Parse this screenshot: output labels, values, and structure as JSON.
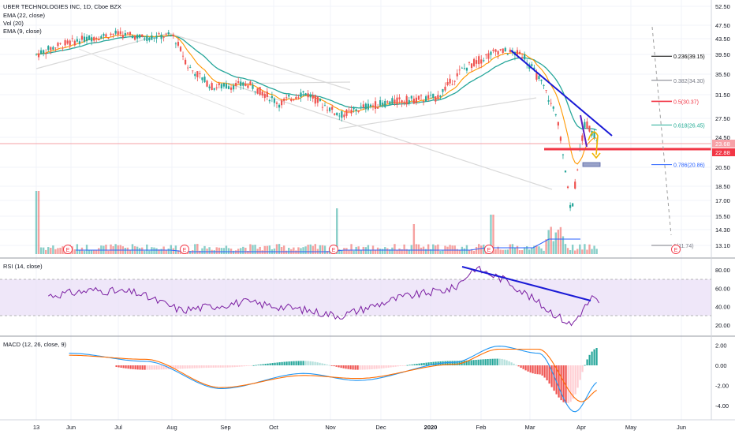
{
  "header": {
    "title": "UBER TECHNOLOGIES INC, 1D, Cboe BZX",
    "ema22": "EMA (22, close)",
    "vol": "Vol (20)",
    "ema9": "EMA (9, close)"
  },
  "chart_data": [
    {
      "type": "candlestick",
      "title": "UBER TECHNOLOGIES INC, 1D, Cboe BZX",
      "price_axis_ticks": [
        "52.50",
        "47.50",
        "43.50",
        "39.50",
        "35.50",
        "31.50",
        "27.50",
        "24.50",
        "20.50",
        "18.50",
        "17.00",
        "15.50",
        "14.30",
        "13.10"
      ],
      "price_axis_values": [
        52.5,
        47.5,
        43.5,
        39.5,
        35.5,
        31.5,
        27.5,
        24.5,
        20.5,
        18.5,
        17.0,
        15.5,
        14.3,
        13.1
      ],
      "x_ticks": [
        "13",
        "Jun",
        "Jul",
        "Aug",
        "Sep",
        "Oct",
        "Nov",
        "Dec",
        "2020",
        "Feb",
        "Mar",
        "Apr",
        "May",
        "Jun"
      ],
      "axis_labels": {
        "current_price": "23.68",
        "level": "22.88"
      },
      "fibonacci_levels": [
        {
          "label": "0.236(39.15)",
          "value": 39.15,
          "color": "#000000"
        },
        {
          "label": "0.382(34.30)",
          "value": 34.3,
          "color": "#787b86"
        },
        {
          "label": "0.5(30.37)",
          "value": 30.37,
          "color": "#f23645"
        },
        {
          "label": "0.618(26.45)",
          "value": 26.45,
          "color": "#22ab94"
        },
        {
          "label": "0.786(20.86)",
          "value": 20.86,
          "color": "#2962ff"
        },
        {
          "label": "1(11.74)",
          "value": 11.74,
          "color": "#787b86"
        }
      ],
      "close_series": [
        {
          "date": "2019-05-13",
          "close": 39.5
        },
        {
          "date": "2019-05-24",
          "close": 41.5
        },
        {
          "date": "2019-06-10",
          "close": 43.5
        },
        {
          "date": "2019-06-28",
          "close": 45.0
        },
        {
          "date": "2019-07-15",
          "close": 43.8
        },
        {
          "date": "2019-07-31",
          "close": 44.5
        },
        {
          "date": "2019-08-09",
          "close": 37.0
        },
        {
          "date": "2019-08-23",
          "close": 33.0
        },
        {
          "date": "2019-09-13",
          "close": 33.5
        },
        {
          "date": "2019-10-01",
          "close": 30.0
        },
        {
          "date": "2019-10-15",
          "close": 32.0
        },
        {
          "date": "2019-11-05",
          "close": 28.0
        },
        {
          "date": "2019-11-20",
          "close": 29.5
        },
        {
          "date": "2019-12-10",
          "close": 30.5
        },
        {
          "date": "2019-12-31",
          "close": 31.0
        },
        {
          "date": "2020-01-15",
          "close": 36.5
        },
        {
          "date": "2020-02-05",
          "close": 40.5
        },
        {
          "date": "2020-02-19",
          "close": 39.5
        },
        {
          "date": "2020-03-02",
          "close": 33.0
        },
        {
          "date": "2020-03-10",
          "close": 27.0
        },
        {
          "date": "2020-03-18",
          "close": 15.5
        },
        {
          "date": "2020-03-26",
          "close": 27.0
        },
        {
          "date": "2020-04-03",
          "close": 23.7
        }
      ],
      "volume_series": [
        {
          "date": "2019-05-13",
          "volume": 3.5
        },
        {
          "date": "2019-06-15",
          "volume": 0.5
        },
        {
          "date": "2019-08-12",
          "volume": 0.4
        },
        {
          "date": "2019-11-05",
          "volume": 1.2
        },
        {
          "date": "2020-02-12",
          "volume": 0.6
        },
        {
          "date": "2020-03-20",
          "volume": 1.4
        }
      ]
    },
    {
      "type": "line",
      "title": "RSI (14, close)",
      "y_ticks": [
        "80.00",
        "60.00",
        "40.00",
        "20.00"
      ],
      "y_values": [
        80,
        60,
        40,
        20
      ],
      "band": [
        30,
        70
      ],
      "series": [
        {
          "date": "2019-05-20",
          "value": 52
        },
        {
          "date": "2019-06-15",
          "value": 58
        },
        {
          "date": "2019-07-10",
          "value": 55
        },
        {
          "date": "2019-08-05",
          "value": 36
        },
        {
          "date": "2019-09-10",
          "value": 45
        },
        {
          "date": "2019-10-10",
          "value": 38
        },
        {
          "date": "2019-11-05",
          "value": 30
        },
        {
          "date": "2019-12-10",
          "value": 50
        },
        {
          "date": "2020-01-10",
          "value": 60
        },
        {
          "date": "2020-01-22",
          "value": 82
        },
        {
          "date": "2020-02-10",
          "value": 68
        },
        {
          "date": "2020-03-02",
          "value": 40
        },
        {
          "date": "2020-03-18",
          "value": 20
        },
        {
          "date": "2020-03-30",
          "value": 50
        },
        {
          "date": "2020-04-03",
          "value": 44
        }
      ]
    },
    {
      "type": "line",
      "title": "MACD (12, 26, close, 9)",
      "y_ticks": [
        "2.00",
        "0.00",
        "-2.00",
        "-4.00"
      ],
      "y_values": [
        2,
        0,
        -2,
        -4
      ],
      "series": [
        {
          "name": "MACD",
          "color": "#2196f3",
          "points": [
            {
              "date": "2019-06-01",
              "value": 1.2
            },
            {
              "date": "2019-07-15",
              "value": 0.4
            },
            {
              "date": "2019-08-28",
              "value": -2.3
            },
            {
              "date": "2019-10-15",
              "value": -0.8
            },
            {
              "date": "2019-11-15",
              "value": -1.5
            },
            {
              "date": "2020-01-10",
              "value": 0.3
            },
            {
              "date": "2020-02-05",
              "value": 1.9
            },
            {
              "date": "2020-02-28",
              "value": 1.2
            },
            {
              "date": "2020-03-20",
              "value": -4.6
            },
            {
              "date": "2020-04-03",
              "value": -1.6
            }
          ]
        },
        {
          "name": "Signal",
          "color": "#ff6d00",
          "points": [
            {
              "date": "2019-06-01",
              "value": 1.0
            },
            {
              "date": "2019-07-15",
              "value": 0.6
            },
            {
              "date": "2019-08-28",
              "value": -2.2
            },
            {
              "date": "2019-10-15",
              "value": -1.0
            },
            {
              "date": "2019-11-15",
              "value": -1.3
            },
            {
              "date": "2020-01-10",
              "value": 0.1
            },
            {
              "date": "2020-02-05",
              "value": 1.6
            },
            {
              "date": "2020-02-28",
              "value": 1.6
            },
            {
              "date": "2020-03-24",
              "value": -3.6
            },
            {
              "date": "2020-04-03",
              "value": -2.4
            }
          ]
        }
      ]
    }
  ]
}
